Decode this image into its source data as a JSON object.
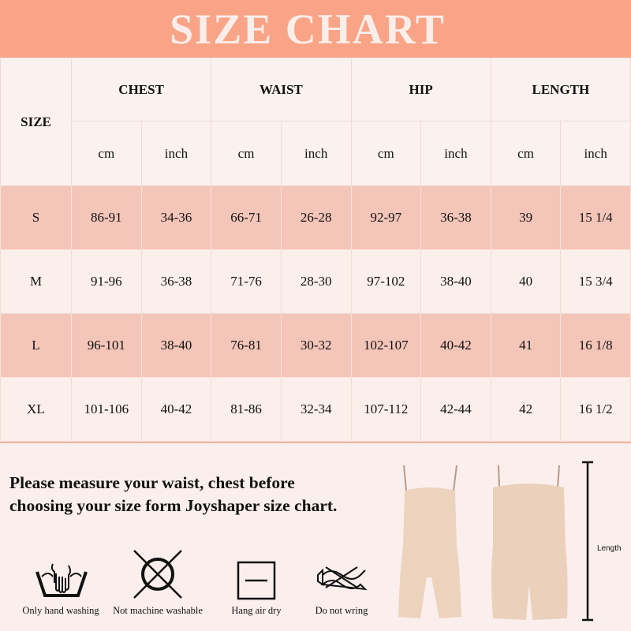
{
  "title": "SIZE CHART",
  "table": {
    "size_header": "SIZE",
    "groups": [
      "CHEST",
      "WAIST",
      "HIP",
      "LENGTH"
    ],
    "units": [
      "cm",
      "inch"
    ],
    "rows": [
      {
        "size": "S",
        "values": [
          "86-91",
          "34-36",
          "66-71",
          "26-28",
          "92-97",
          "36-38",
          "39",
          "15 1/4"
        ]
      },
      {
        "size": "M",
        "values": [
          "91-96",
          "36-38",
          "71-76",
          "28-30",
          "97-102",
          "38-40",
          "40",
          "15 3/4"
        ]
      },
      {
        "size": "L",
        "values": [
          "96-101",
          "38-40",
          "76-81",
          "30-32",
          "102-107",
          "40-42",
          "41",
          "16 1/8"
        ]
      },
      {
        "size": "XL",
        "values": [
          "101-106",
          "40-42",
          "81-86",
          "32-34",
          "107-112",
          "42-44",
          "42",
          "16 1/2"
        ]
      }
    ]
  },
  "note": {
    "line1": "Please measure your waist, chest before",
    "line2": "choosing your size form Joyshaper size chart."
  },
  "care": [
    "Only hand washing",
    "Not machine washable",
    "Hang air dry",
    "Do not wring"
  ],
  "length_label": "Length",
  "colors": {
    "header": "#f9a487",
    "pink_row": "#f4c5b9",
    "light_row": "#fbefeb",
    "garment": "#ecd3bd"
  }
}
